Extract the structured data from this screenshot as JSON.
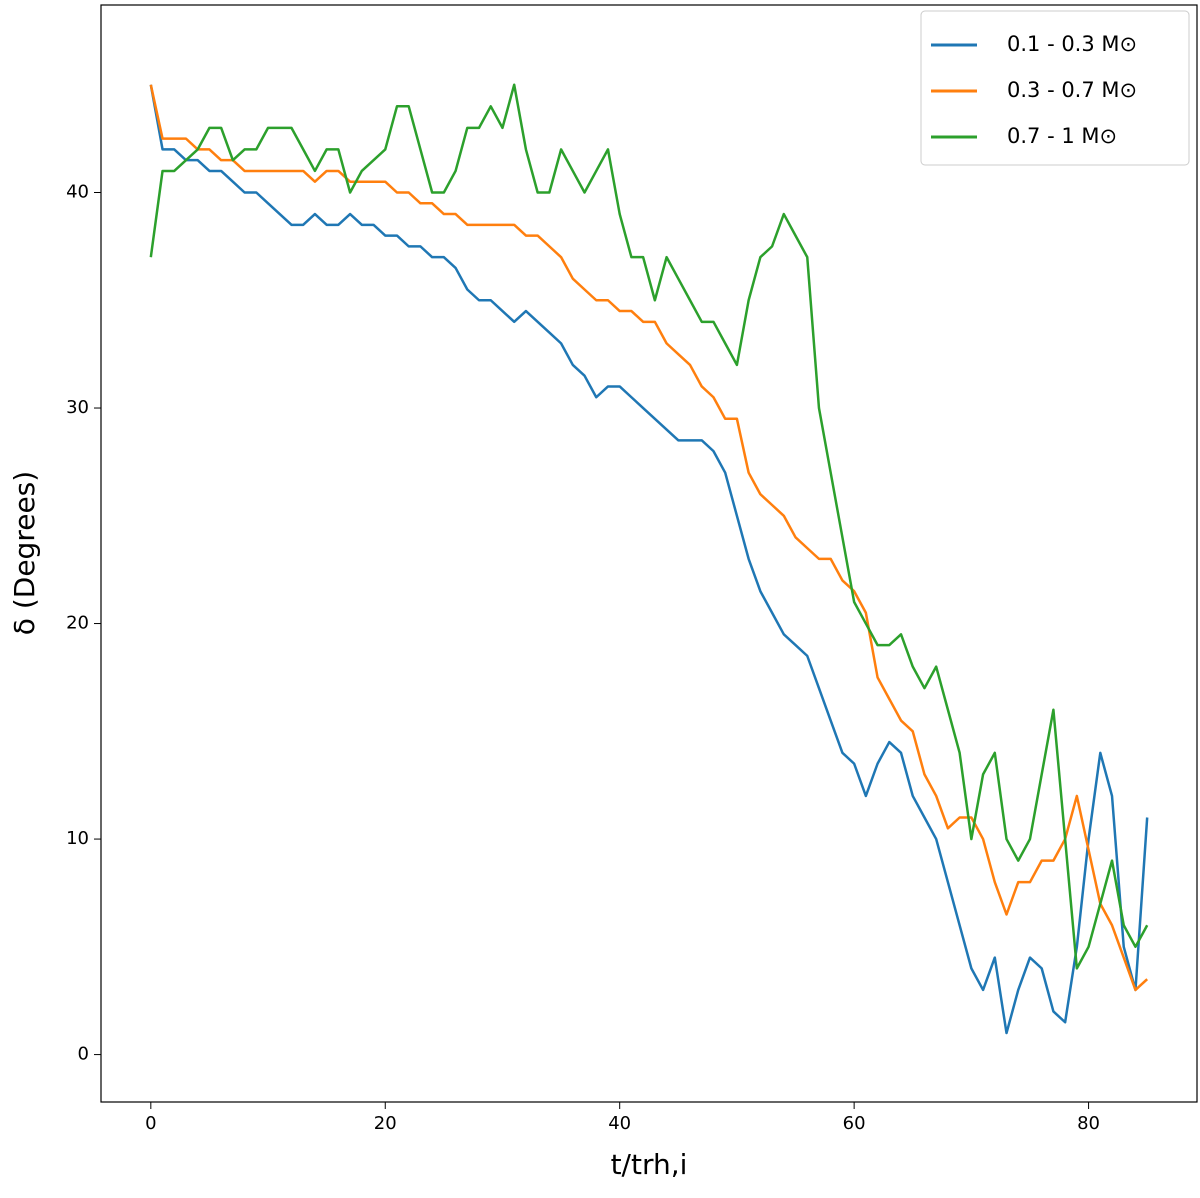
{
  "chart_data": {
    "type": "line",
    "xlabel": "t/trh,i",
    "ylabel": "δ (Degrees)",
    "x": [
      0,
      1,
      2,
      3,
      4,
      5,
      6,
      7,
      8,
      9,
      10,
      11,
      12,
      13,
      14,
      15,
      16,
      17,
      18,
      19,
      20,
      21,
      22,
      23,
      24,
      25,
      26,
      27,
      28,
      29,
      30,
      31,
      32,
      33,
      34,
      35,
      36,
      37,
      38,
      39,
      40,
      41,
      42,
      43,
      44,
      45,
      46,
      47,
      48,
      49,
      50,
      51,
      52,
      53,
      54,
      55,
      56,
      57,
      58,
      59,
      60,
      61,
      62,
      63,
      64,
      65,
      66,
      67,
      68,
      69,
      70,
      71,
      72,
      73,
      74,
      75,
      76,
      77,
      78,
      79,
      80,
      81,
      82,
      83,
      84,
      85
    ],
    "series": [
      {
        "name": "0.1 - 0.3 M⊙",
        "color": "#1f77b4",
        "values": [
          45,
          42,
          42,
          41.5,
          41.5,
          41,
          41,
          40.5,
          40,
          40,
          39.5,
          39,
          38.5,
          38.5,
          39,
          38.5,
          38.5,
          39,
          38.5,
          38.5,
          38,
          38,
          37.5,
          37.5,
          37,
          37,
          36.5,
          35.5,
          35,
          35,
          34.5,
          34,
          34.5,
          34,
          33.5,
          33,
          32,
          31.5,
          30.5,
          31,
          31,
          30.5,
          30,
          29.5,
          29,
          28.5,
          28.5,
          28.5,
          28,
          27,
          25,
          23,
          21.5,
          20.5,
          19.5,
          19,
          18.5,
          17,
          15.5,
          14,
          13.5,
          12,
          13.5,
          14.5,
          14,
          12,
          11,
          10,
          8,
          6,
          4,
          3,
          4.5,
          1,
          3,
          4.5,
          4,
          2,
          1.5,
          5,
          10,
          14,
          12,
          5,
          3,
          11
        ]
      },
      {
        "name": "0.3 - 0.7 M⊙",
        "color": "#ff7f0e",
        "values": [
          45,
          42.5,
          42.5,
          42.5,
          42,
          42,
          41.5,
          41.5,
          41,
          41,
          41,
          41,
          41,
          41,
          40.5,
          41,
          41,
          40.5,
          40.5,
          40.5,
          40.5,
          40,
          40,
          39.5,
          39.5,
          39,
          39,
          38.5,
          38.5,
          38.5,
          38.5,
          38.5,
          38,
          38,
          37.5,
          37,
          36,
          35.5,
          35,
          35,
          34.5,
          34.5,
          34,
          34,
          33,
          32.5,
          32,
          31,
          30.5,
          29.5,
          29.5,
          27,
          26,
          25.5,
          25,
          24,
          23.5,
          23,
          23,
          22,
          21.5,
          20.5,
          17.5,
          16.5,
          15.5,
          15,
          13,
          12,
          10.5,
          11,
          11,
          10,
          8,
          6.5,
          8,
          8,
          9,
          9,
          10,
          12,
          9.5,
          7,
          6,
          4.5,
          3,
          3.5
        ]
      },
      {
        "name": "0.7 - 1 M⊙",
        "color": "#2ca02c",
        "values": [
          37,
          41,
          41,
          41.5,
          42,
          43,
          43,
          41.5,
          42,
          42,
          43,
          43,
          43,
          42,
          41,
          42,
          42,
          40,
          41,
          41.5,
          42,
          44,
          44,
          42,
          40,
          40,
          41,
          43,
          43,
          44,
          43,
          45,
          42,
          40,
          40,
          42,
          41,
          40,
          41,
          42,
          39,
          37,
          37,
          35,
          37,
          36,
          35,
          34,
          34,
          33,
          32,
          35,
          37,
          37.5,
          39,
          38,
          37,
          30,
          27,
          24,
          21,
          20,
          19,
          19,
          19.5,
          18,
          17,
          18,
          16,
          14,
          10,
          13,
          14,
          10,
          9,
          10,
          13,
          16,
          10,
          4,
          5,
          7,
          9,
          6,
          5,
          6
        ]
      }
    ],
    "xlim": [
      -4.25,
      89.25
    ],
    "xticks": [
      0,
      20,
      40,
      60,
      80
    ],
    "ylim": [
      -2.2,
      48.7
    ],
    "yticks": [
      0,
      10,
      20,
      30,
      40
    ],
    "legend": "upper right"
  }
}
